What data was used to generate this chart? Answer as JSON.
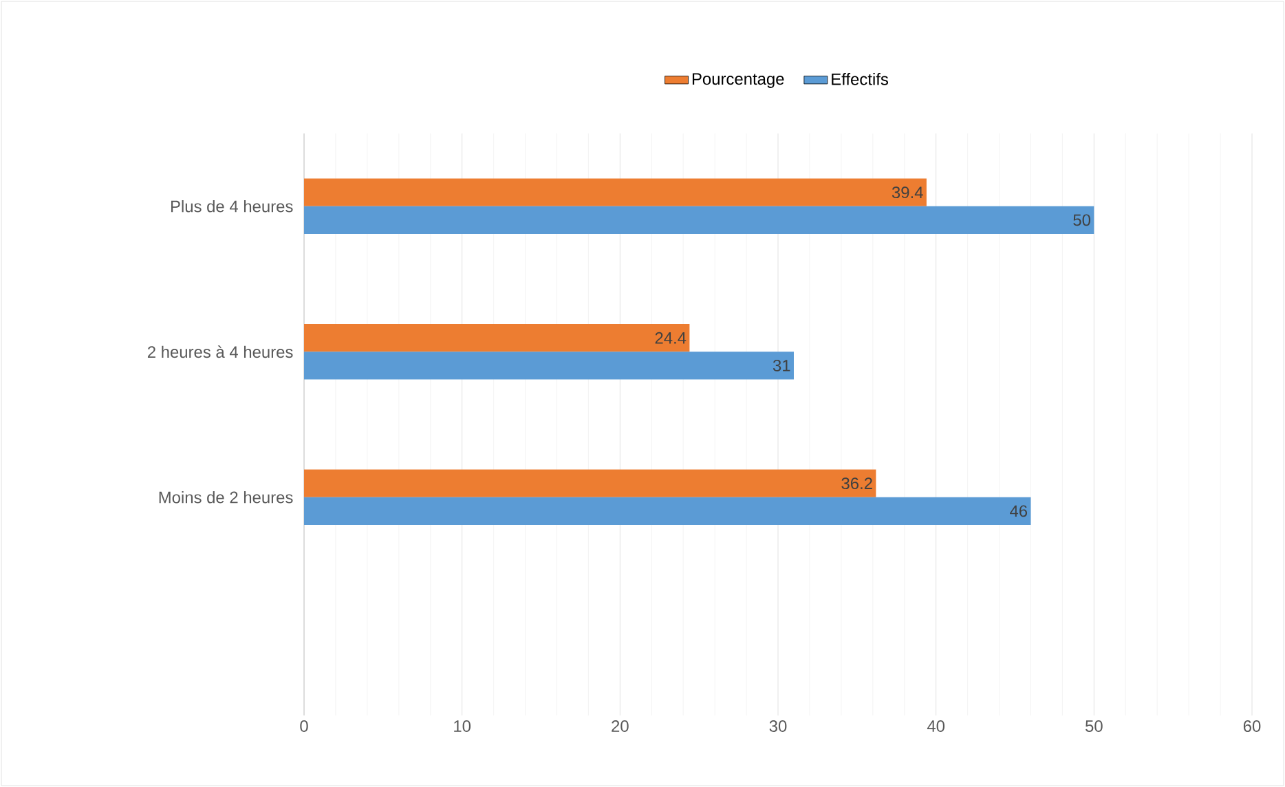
{
  "chart_data": {
    "type": "bar",
    "orientation": "horizontal",
    "categories": [
      "Plus de 4 heures",
      "2 heures à 4 heures",
      "Moins de 2 heures",
      null
    ],
    "series": [
      {
        "name": "Pourcentage",
        "color": "#ed7d31",
        "values": [
          39.4,
          24.4,
          36.2,
          null
        ]
      },
      {
        "name": "Effectifs",
        "color": "#5b9bd5",
        "values": [
          50,
          31,
          46,
          null
        ]
      }
    ],
    "xlim": [
      0,
      60
    ],
    "xticks": [
      0,
      10,
      20,
      30,
      40,
      50,
      60
    ],
    "grid": "x",
    "legend": "top",
    "data_labels": true
  }
}
